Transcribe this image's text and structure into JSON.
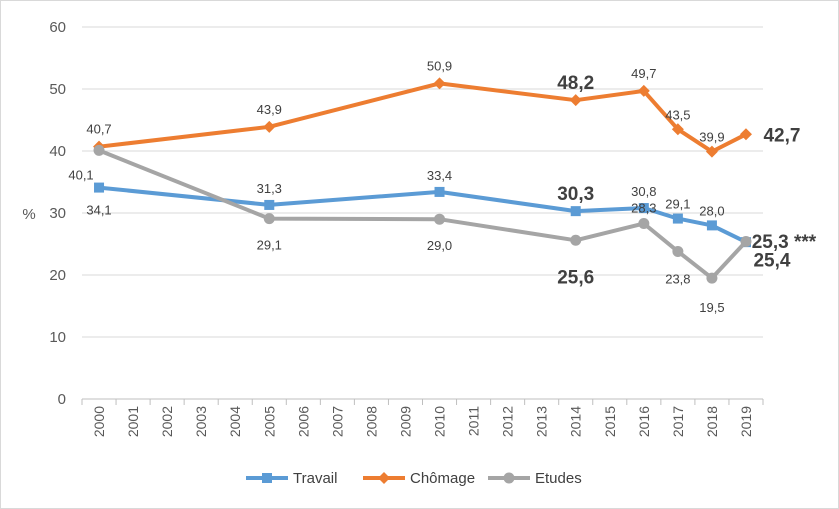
{
  "chart_data": {
    "type": "line",
    "title": "",
    "ylabel": "%",
    "xlabel": "",
    "ylim": [
      0,
      60
    ],
    "yticks": [
      "0",
      "10",
      "20",
      "30",
      "40",
      "50",
      "60"
    ],
    "grid": true,
    "legend_position": "bottom",
    "categories": [
      "2000",
      "2001",
      "2002",
      "2003",
      "2004",
      "2005",
      "2006",
      "2007",
      "2008",
      "2009",
      "2010",
      "2011",
      "2012",
      "2013",
      "2014",
      "2015",
      "2016",
      "2017",
      "2018",
      "2019"
    ],
    "series": [
      {
        "name": "Travail",
        "color": "#5b9bd5",
        "marker": "square",
        "points": [
          {
            "x": "2000",
            "y": 34.1,
            "label": "34,1",
            "emph": false
          },
          {
            "x": "2005",
            "y": 31.3,
            "label": "31,3",
            "emph": false
          },
          {
            "x": "2010",
            "y": 33.4,
            "label": "33,4",
            "emph": false
          },
          {
            "x": "2014",
            "y": 30.3,
            "label": "30,3",
            "emph": true
          },
          {
            "x": "2016",
            "y": 30.8,
            "label": "30,8",
            "emph": false
          },
          {
            "x": "2017",
            "y": 29.1,
            "label": "29,1",
            "emph": false
          },
          {
            "x": "2018",
            "y": 28.0,
            "label": "28,0",
            "emph": false
          },
          {
            "x": "2019",
            "y": 25.3,
            "label": "25,3 ***",
            "emph": true
          }
        ]
      },
      {
        "name": "Chômage",
        "color": "#ed7d31",
        "marker": "diamond",
        "points": [
          {
            "x": "2000",
            "y": 40.7,
            "label": "40,7",
            "emph": false
          },
          {
            "x": "2005",
            "y": 43.9,
            "label": "43,9",
            "emph": false
          },
          {
            "x": "2010",
            "y": 50.9,
            "label": "50,9",
            "emph": false
          },
          {
            "x": "2014",
            "y": 48.2,
            "label": "48,2",
            "emph": true
          },
          {
            "x": "2016",
            "y": 49.7,
            "label": "49,7",
            "emph": false
          },
          {
            "x": "2017",
            "y": 43.5,
            "label": "43,5",
            "emph": false
          },
          {
            "x": "2018",
            "y": 39.9,
            "label": "39,9",
            "emph": false
          },
          {
            "x": "2019",
            "y": 42.7,
            "label": "42,7",
            "emph": true
          }
        ]
      },
      {
        "name": "Etudes",
        "color": "#a5a5a5",
        "marker": "circle",
        "points": [
          {
            "x": "2000",
            "y": 40.1,
            "label": "40,1",
            "emph": false
          },
          {
            "x": "2005",
            "y": 29.1,
            "label": "29,1",
            "emph": false
          },
          {
            "x": "2010",
            "y": 29.0,
            "label": "29,0",
            "emph": false
          },
          {
            "x": "2014",
            "y": 25.6,
            "label": "25,6",
            "emph": true
          },
          {
            "x": "2016",
            "y": 28.3,
            "label": "28,3",
            "emph": false
          },
          {
            "x": "2017",
            "y": 23.8,
            "label": "23,8",
            "emph": false
          },
          {
            "x": "2018",
            "y": 19.5,
            "label": "19,5",
            "emph": false
          },
          {
            "x": "2019",
            "y": 25.4,
            "label": "25,4",
            "emph": true
          }
        ]
      }
    ]
  }
}
